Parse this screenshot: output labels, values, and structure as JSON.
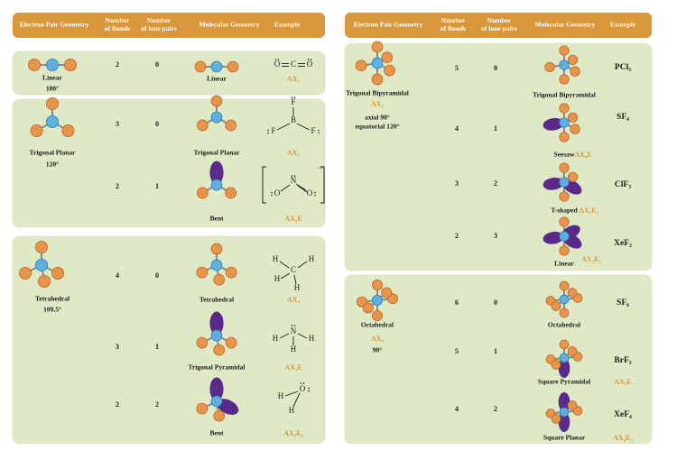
{
  "panels": [
    {
      "header": [
        [
          "Electron Pair Geometry"
        ],
        [
          "Number",
          "of Bonds"
        ],
        [
          "Number",
          "of lone pairs"
        ],
        [
          "Molecular Geometry"
        ],
        [
          "Example"
        ]
      ],
      "groups": [
        {
          "geometry": "Linear",
          "angle": [
            "180°"
          ],
          "rows": [
            {
              "bonds": 2,
              "lone_pairs": 0,
              "shape": "Linear",
              "lewis": [
                "O",
                "C",
                "O"
              ],
              "notation": "AX₂"
            }
          ]
        },
        {
          "geometry": "Trigonal Planar",
          "angle": [
            "120°"
          ],
          "rows": [
            {
              "bonds": 3,
              "lone_pairs": 0,
              "shape": "Trigonal Planar",
              "lewis": [
                "B",
                "F",
                "F",
                "F"
              ],
              "notation": "AX₃"
            },
            {
              "bonds": 2,
              "lone_pairs": 1,
              "shape": "Bent",
              "lewis": [
                "N",
                "O",
                "O",
                "−"
              ],
              "notation": "AX₂E"
            }
          ]
        },
        {
          "geometry": "Tetrahedral",
          "angle": [
            "109.5°"
          ],
          "rows": [
            {
              "bonds": 4,
              "lone_pairs": 0,
              "shape": "Tetrahedral",
              "lewis": [
                "C",
                "H",
                "H",
                "H",
                "H"
              ],
              "notation": "AX₄"
            },
            {
              "bonds": 3,
              "lone_pairs": 1,
              "shape": "Trigonal Pyramidal",
              "lewis": [
                "N",
                "H",
                "H",
                "H"
              ],
              "notation": "AX₃E"
            },
            {
              "bonds": 2,
              "lone_pairs": 2,
              "shape": "Bent",
              "lewis": [
                "O",
                "H",
                "H"
              ],
              "notation": "AX₂E₂"
            }
          ]
        }
      ]
    },
    {
      "header": [
        [
          "Electron Pair Geometry"
        ],
        [
          "Number",
          "of Bonds"
        ],
        [
          "Number",
          "of lone pairs"
        ],
        [
          "Molecular Geometry"
        ],
        [
          "Example"
        ]
      ],
      "groups": [
        {
          "geometry": "Trigonal Bipyramidal",
          "notation": "AX₅",
          "angle": [
            "axial 90°",
            "equatorial 120°"
          ],
          "rows": [
            {
              "bonds": 5,
              "lone_pairs": 0,
              "shape": "Trigonal Bipyramidal",
              "formula": "PCl₅"
            },
            {
              "bonds": 4,
              "lone_pairs": 1,
              "shape": "Seesaw",
              "formula": "SF₄",
              "notation": "AX₄E"
            },
            {
              "bonds": 3,
              "lone_pairs": 2,
              "shape": "T-shaped",
              "formula": "ClF₃",
              "notation": "AX₃E₂"
            },
            {
              "bonds": 2,
              "lone_pairs": 3,
              "shape": "Linear",
              "formula": "XeF₂",
              "notation": "AX₂E₃"
            }
          ]
        },
        {
          "geometry": "Octahedral",
          "notation": "AX₆",
          "angle": [
            "90°"
          ],
          "rows": [
            {
              "bonds": 6,
              "lone_pairs": 0,
              "shape": "Octahedral",
              "formula": "SF₆"
            },
            {
              "bonds": 5,
              "lone_pairs": 1,
              "shape": "Square Pyramidal",
              "formula": "BrF₅",
              "notation": "AX₅E"
            },
            {
              "bonds": 4,
              "lone_pairs": 2,
              "shape": "Square Planar",
              "formula": "XeF₄",
              "notation": "AX₄E₂"
            }
          ]
        }
      ]
    }
  ]
}
